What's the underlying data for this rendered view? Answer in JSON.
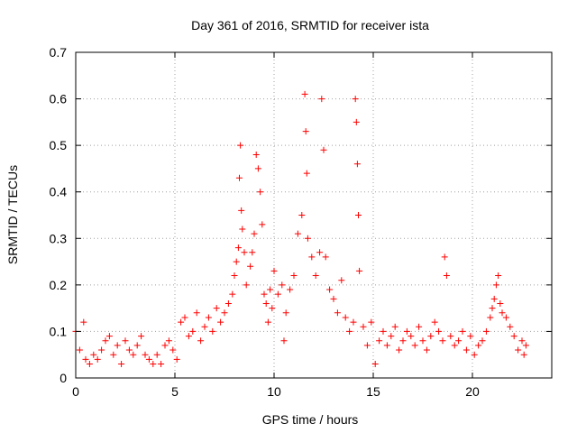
{
  "chart_data": {
    "type": "scatter",
    "title": "Day 361 of 2016, SRMTID for receiver ista",
    "xlabel": "GPS time / hours",
    "ylabel": "SRMTID / TECUs",
    "xlim": [
      0,
      24
    ],
    "ylim": [
      0,
      0.7
    ],
    "x_ticks": [
      0,
      5,
      10,
      15,
      20
    ],
    "x_tick_labels": [
      "0",
      "5",
      "10",
      "15",
      "20"
    ],
    "y_ticks": [
      0,
      0.1,
      0.2,
      0.3,
      0.4,
      0.5,
      0.6,
      0.7
    ],
    "y_tick_labels": [
      "0",
      "0.1",
      "0.2",
      "0.3",
      "0.4",
      "0.5",
      "0.6",
      "0.7"
    ],
    "grid": true,
    "marker": "+",
    "color": "#ff0000",
    "series": [
      {
        "name": "SRMTID",
        "points": [
          [
            0.0,
            0.1
          ],
          [
            0.2,
            0.06
          ],
          [
            0.4,
            0.12
          ],
          [
            0.5,
            0.04
          ],
          [
            0.7,
            0.03
          ],
          [
            0.9,
            0.05
          ],
          [
            1.1,
            0.04
          ],
          [
            1.3,
            0.06
          ],
          [
            1.5,
            0.08
          ],
          [
            1.7,
            0.09
          ],
          [
            1.9,
            0.05
          ],
          [
            2.1,
            0.07
          ],
          [
            2.3,
            0.03
          ],
          [
            2.5,
            0.08
          ],
          [
            2.7,
            0.06
          ],
          [
            2.9,
            0.05
          ],
          [
            3.1,
            0.07
          ],
          [
            3.3,
            0.09
          ],
          [
            3.5,
            0.05
          ],
          [
            3.7,
            0.04
          ],
          [
            3.9,
            0.03
          ],
          [
            4.1,
            0.05
          ],
          [
            4.3,
            0.03
          ],
          [
            4.5,
            0.07
          ],
          [
            4.7,
            0.08
          ],
          [
            4.9,
            0.06
          ],
          [
            5.1,
            0.04
          ],
          [
            5.3,
            0.12
          ],
          [
            5.5,
            0.13
          ],
          [
            5.7,
            0.09
          ],
          [
            5.9,
            0.1
          ],
          [
            6.1,
            0.14
          ],
          [
            6.3,
            0.08
          ],
          [
            6.5,
            0.11
          ],
          [
            6.7,
            0.13
          ],
          [
            6.9,
            0.1
          ],
          [
            7.1,
            0.15
          ],
          [
            7.3,
            0.12
          ],
          [
            7.5,
            0.14
          ],
          [
            7.7,
            0.16
          ],
          [
            7.9,
            0.18
          ],
          [
            8.0,
            0.22
          ],
          [
            8.1,
            0.25
          ],
          [
            8.2,
            0.28
          ],
          [
            8.25,
            0.43
          ],
          [
            8.3,
            0.5
          ],
          [
            8.35,
            0.36
          ],
          [
            8.4,
            0.32
          ],
          [
            8.5,
            0.27
          ],
          [
            8.6,
            0.2
          ],
          [
            8.8,
            0.24
          ],
          [
            8.9,
            0.27
          ],
          [
            9.0,
            0.31
          ],
          [
            9.1,
            0.48
          ],
          [
            9.2,
            0.45
          ],
          [
            9.3,
            0.4
          ],
          [
            9.4,
            0.33
          ],
          [
            9.5,
            0.18
          ],
          [
            9.6,
            0.16
          ],
          [
            9.7,
            0.12
          ],
          [
            9.8,
            0.19
          ],
          [
            9.9,
            0.15
          ],
          [
            10.0,
            0.23
          ],
          [
            10.2,
            0.18
          ],
          [
            10.4,
            0.2
          ],
          [
            10.5,
            0.08
          ],
          [
            10.6,
            0.14
          ],
          [
            10.8,
            0.19
          ],
          [
            11.0,
            0.22
          ],
          [
            11.2,
            0.31
          ],
          [
            11.4,
            0.35
          ],
          [
            11.55,
            0.61
          ],
          [
            11.6,
            0.53
          ],
          [
            11.65,
            0.44
          ],
          [
            11.7,
            0.3
          ],
          [
            11.9,
            0.26
          ],
          [
            12.1,
            0.22
          ],
          [
            12.3,
            0.27
          ],
          [
            12.4,
            0.6
          ],
          [
            12.5,
            0.49
          ],
          [
            12.6,
            0.26
          ],
          [
            12.8,
            0.19
          ],
          [
            13.0,
            0.17
          ],
          [
            13.2,
            0.14
          ],
          [
            13.4,
            0.21
          ],
          [
            13.6,
            0.13
          ],
          [
            13.8,
            0.1
          ],
          [
            14.0,
            0.12
          ],
          [
            14.1,
            0.6
          ],
          [
            14.15,
            0.55
          ],
          [
            14.2,
            0.46
          ],
          [
            14.25,
            0.35
          ],
          [
            14.3,
            0.23
          ],
          [
            14.5,
            0.11
          ],
          [
            14.7,
            0.07
          ],
          [
            14.9,
            0.12
          ],
          [
            15.1,
            0.03
          ],
          [
            15.3,
            0.08
          ],
          [
            15.5,
            0.1
          ],
          [
            15.7,
            0.07
          ],
          [
            15.9,
            0.09
          ],
          [
            16.1,
            0.11
          ],
          [
            16.3,
            0.06
          ],
          [
            16.5,
            0.08
          ],
          [
            16.7,
            0.1
          ],
          [
            16.9,
            0.09
          ],
          [
            17.1,
            0.07
          ],
          [
            17.3,
            0.11
          ],
          [
            17.5,
            0.08
          ],
          [
            17.7,
            0.06
          ],
          [
            17.9,
            0.09
          ],
          [
            18.1,
            0.12
          ],
          [
            18.3,
            0.1
          ],
          [
            18.5,
            0.08
          ],
          [
            18.6,
            0.26
          ],
          [
            18.7,
            0.22
          ],
          [
            18.9,
            0.09
          ],
          [
            19.1,
            0.07
          ],
          [
            19.3,
            0.08
          ],
          [
            19.5,
            0.1
          ],
          [
            19.7,
            0.06
          ],
          [
            19.9,
            0.09
          ],
          [
            20.1,
            0.05
          ],
          [
            20.3,
            0.07
          ],
          [
            20.5,
            0.08
          ],
          [
            20.7,
            0.1
          ],
          [
            20.9,
            0.13
          ],
          [
            21.0,
            0.15
          ],
          [
            21.1,
            0.17
          ],
          [
            21.2,
            0.2
          ],
          [
            21.3,
            0.22
          ],
          [
            21.4,
            0.16
          ],
          [
            21.5,
            0.14
          ],
          [
            21.7,
            0.13
          ],
          [
            21.9,
            0.11
          ],
          [
            22.1,
            0.09
          ],
          [
            22.3,
            0.06
          ],
          [
            22.5,
            0.08
          ],
          [
            22.6,
            0.05
          ],
          [
            22.7,
            0.07
          ]
        ]
      }
    ]
  }
}
